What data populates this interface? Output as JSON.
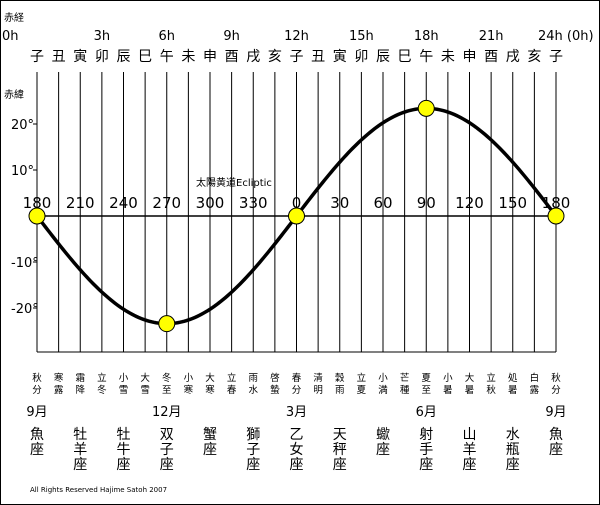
{
  "ra_label": "赤経",
  "dec_label": "赤緯",
  "ra_hours": [
    "0h",
    "3h",
    "6h",
    "9h",
    "12h",
    "15h",
    "18h",
    "21h",
    "24h (0h)"
  ],
  "zodiac_branches": [
    "子",
    "丑",
    "寅",
    "卯",
    "辰",
    "巳",
    "午",
    "未",
    "申",
    "酉",
    "戌",
    "亥",
    "子",
    "丑",
    "寅",
    "卯",
    "辰",
    "巳",
    "午",
    "未",
    "申",
    "酉",
    "戌",
    "亥",
    "子"
  ],
  "dec_ticks": [
    "20°",
    "10°",
    "-10°",
    "-20°"
  ],
  "ecliptic_label": "太陽黄道Ecliptic",
  "longitudes": [
    "180",
    "210",
    "240",
    "270",
    "300",
    "330",
    "0",
    "30",
    "60",
    "90",
    "120",
    "150",
    "180"
  ],
  "solar_terms": [
    "秋分",
    "寒露",
    "霜降",
    "立冬",
    "小雪",
    "大雪",
    "冬至",
    "小寒",
    "大寒",
    "立春",
    "雨水",
    "啓蟄",
    "春分",
    "清明",
    "穀雨",
    "立夏",
    "小満",
    "芒種",
    "夏至",
    "小暑",
    "大暑",
    "立秋",
    "処暑",
    "白露",
    "秋分"
  ],
  "months": [
    {
      "label": "9月",
      "index": 0
    },
    {
      "label": "12月",
      "index": 6
    },
    {
      "label": "3月",
      "index": 12
    },
    {
      "label": "6月",
      "index": 18
    },
    {
      "label": "9月",
      "index": 24
    }
  ],
  "constellations": [
    {
      "name": "魚座",
      "index": 0
    },
    {
      "name": "牡羊座",
      "index": 2
    },
    {
      "name": "牡牛座",
      "index": 4
    },
    {
      "name": "双子座",
      "index": 6
    },
    {
      "name": "蟹座",
      "index": 8
    },
    {
      "name": "獅子座",
      "index": 10
    },
    {
      "name": "乙女座",
      "index": 12
    },
    {
      "name": "天秤座",
      "index": 14
    },
    {
      "name": "蠍座",
      "index": 16
    },
    {
      "name": "射手座",
      "index": 18
    },
    {
      "name": "山羊座",
      "index": 20
    },
    {
      "name": "水瓶座",
      "index": 22
    },
    {
      "name": "魚座",
      "index": 24
    }
  ],
  "sun_points": [
    {
      "term": "秋分",
      "ra_h": 0,
      "dec": 0
    },
    {
      "term": "冬至",
      "ra_h": 6,
      "dec": -23.4
    },
    {
      "term": "春分",
      "ra_h": 12,
      "dec": 0
    },
    {
      "term": "夏至",
      "ra_h": 18,
      "dec": 23.4
    },
    {
      "term": "秋分",
      "ra_h": 24,
      "dec": 0
    }
  ],
  "obliquity": 23.4,
  "copyright": "All Rights Reserved Hajime Satoh 2007",
  "colors": {
    "sun": "#ffff00",
    "curve": "#000000",
    "grid": "#000000"
  }
}
